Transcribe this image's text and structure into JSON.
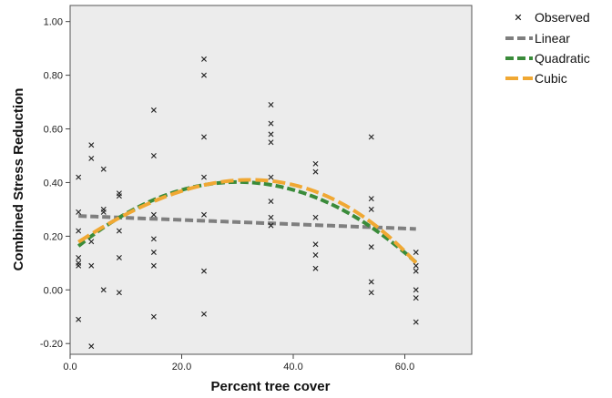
{
  "chart_data": {
    "type": "scatter",
    "xlabel": "Percent tree cover",
    "ylabel": "Combined Stress Reduction",
    "xlim": [
      0,
      72
    ],
    "ylim": [
      -0.24,
      1.06
    ],
    "x_ticks": [
      0,
      20,
      40,
      60
    ],
    "x_tick_labels": [
      "0.0",
      "20.0",
      "40.0",
      "60.0"
    ],
    "y_ticks": [
      -0.2,
      0.0,
      0.2,
      0.4,
      0.6,
      0.8,
      1.0
    ],
    "y_tick_labels": [
      "-0.20",
      "0.00",
      "0.20",
      "0.40",
      "0.60",
      "0.80",
      "1.00"
    ],
    "grid": false,
    "legend_position": "top-right (outside plot)",
    "plot_background": "#ececec",
    "series": [
      {
        "name": "Observed",
        "kind": "scatter",
        "marker": "x",
        "color": "#222222",
        "points": [
          [
            1.5,
            0.42
          ],
          [
            1.5,
            0.29
          ],
          [
            1.5,
            0.22
          ],
          [
            1.5,
            0.12
          ],
          [
            1.5,
            0.1
          ],
          [
            1.5,
            0.09
          ],
          [
            1.5,
            -0.11
          ],
          [
            3.8,
            0.54
          ],
          [
            3.8,
            0.49
          ],
          [
            3.8,
            0.18
          ],
          [
            3.8,
            0.09
          ],
          [
            3.8,
            -0.21
          ],
          [
            6.0,
            0.45
          ],
          [
            6.0,
            0.3
          ],
          [
            6.0,
            0.29
          ],
          [
            6.0,
            0.0
          ],
          [
            8.8,
            0.36
          ],
          [
            8.8,
            0.35
          ],
          [
            8.8,
            0.22
          ],
          [
            8.8,
            0.12
          ],
          [
            8.8,
            -0.01
          ],
          [
            15.0,
            0.67
          ],
          [
            15.0,
            0.5
          ],
          [
            15.0,
            0.28
          ],
          [
            15.0,
            0.19
          ],
          [
            15.0,
            0.14
          ],
          [
            15.0,
            0.09
          ],
          [
            15.0,
            -0.1
          ],
          [
            24.0,
            0.86
          ],
          [
            24.0,
            0.8
          ],
          [
            24.0,
            0.57
          ],
          [
            24.0,
            0.42
          ],
          [
            24.0,
            0.28
          ],
          [
            24.0,
            0.07
          ],
          [
            24.0,
            -0.09
          ],
          [
            36.0,
            0.69
          ],
          [
            36.0,
            0.62
          ],
          [
            36.0,
            0.58
          ],
          [
            36.0,
            0.55
          ],
          [
            36.0,
            0.42
          ],
          [
            36.0,
            0.33
          ],
          [
            36.0,
            0.27
          ],
          [
            36.0,
            0.24
          ],
          [
            44.0,
            0.47
          ],
          [
            44.0,
            0.44
          ],
          [
            44.0,
            0.27
          ],
          [
            44.0,
            0.17
          ],
          [
            44.0,
            0.13
          ],
          [
            44.0,
            0.08
          ],
          [
            54.0,
            0.57
          ],
          [
            54.0,
            0.34
          ],
          [
            54.0,
            0.3
          ],
          [
            54.0,
            0.16
          ],
          [
            54.0,
            0.03
          ],
          [
            54.0,
            -0.01
          ],
          [
            62.0,
            0.14
          ],
          [
            62.0,
            0.09
          ],
          [
            62.0,
            0.07
          ],
          [
            62.0,
            0.0
          ],
          [
            62.0,
            -0.03
          ],
          [
            62.0,
            -0.12
          ]
        ]
      },
      {
        "name": "Linear",
        "kind": "line",
        "color": "#7f7f7f",
        "dash": "9,4",
        "coef": [
          0.2768,
          -0.0008
        ],
        "x_range": [
          1.5,
          62
        ]
      },
      {
        "name": "Quadratic",
        "kind": "line",
        "color": "#3a8b3a",
        "dash": "9,4",
        "coef": [
          0.1376,
          0.0176,
          -0.000293
        ],
        "x_range": [
          1.5,
          62
        ]
      },
      {
        "name": "Cubic",
        "kind": "line",
        "color": "#f0a833",
        "dash": "14,5",
        "coef": [
          0.158,
          0.0138,
          -0.000129,
          -1.75e-06
        ],
        "x_range": [
          1.5,
          62
        ]
      }
    ]
  },
  "legend": {
    "items": [
      {
        "label": "Observed",
        "type": "marker",
        "color": "#222222"
      },
      {
        "label": "Linear",
        "type": "line",
        "color": "#7f7f7f",
        "dash": "9,4"
      },
      {
        "label": "Quadratic",
        "type": "line",
        "color": "#3a8b3a",
        "dash": "9,4"
      },
      {
        "label": "Cubic",
        "type": "line",
        "color": "#f0a833",
        "dash": "14,5"
      }
    ]
  }
}
